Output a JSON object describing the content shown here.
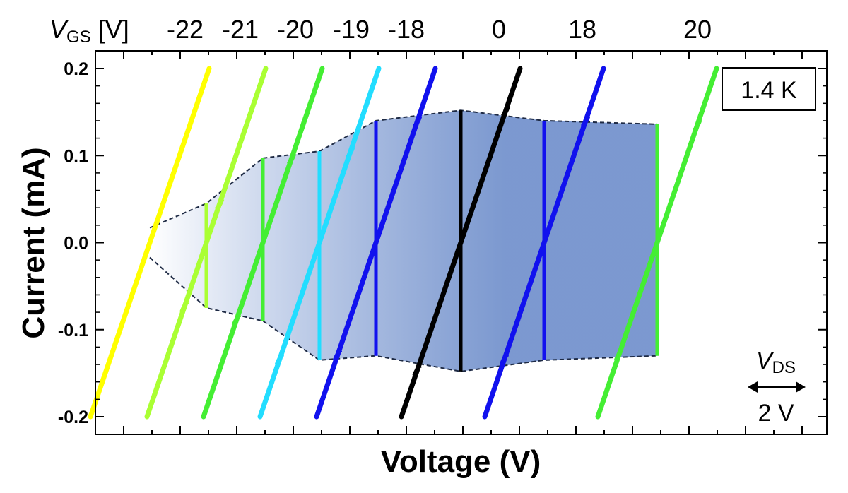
{
  "chart_data": {
    "type": "line",
    "title": "",
    "xlabel": "Voltage (V)",
    "ylabel": "Current (mA)",
    "ylim": [
      -0.2,
      0.2
    ],
    "yticks": [
      {
        "v": -0.2,
        "t": "-0.2"
      },
      {
        "v": -0.1,
        "t": "-0.1"
      },
      {
        "v": 0.0,
        "t": "0.0"
      },
      {
        "v": 0.1,
        "t": "0.1"
      },
      {
        "v": 0.2,
        "t": "0.2"
      }
    ],
    "top_axis": {
      "label_italic": "V",
      "label_sub": "GS",
      "label_unit": " [V]",
      "labels": [
        "-22",
        "-21",
        "-20",
        "-19",
        "-18",
        "0",
        "18",
        "20"
      ]
    },
    "temperature_label": "1.4 K",
    "scale_bar": {
      "label_italic": "V",
      "label_sub": "DS",
      "value": "2 V"
    },
    "series": [
      {
        "vgs": "-22",
        "color": "#ffff00",
        "offset": 0.0,
        "gap": 0.0
      },
      {
        "vgs": "-21",
        "color": "#aaff33",
        "offset": 0.0,
        "gap": 0.04
      },
      {
        "vgs": "-20",
        "color": "#44ee33",
        "offset": 0.0,
        "gap": 0.09
      },
      {
        "vgs": "-19",
        "color": "#22ddff",
        "offset": 0.0,
        "gap": 0.105
      },
      {
        "vgs": "-18",
        "color": "#1111ee",
        "offset": 0.0,
        "gap": 0.135
      },
      {
        "vgs": "0",
        "color": "#000000",
        "offset": 0.0,
        "gap": 0.152
      },
      {
        "vgs": "18",
        "color": "#1111ee",
        "offset": 0.0,
        "gap": 0.138
      },
      {
        "vgs": "20",
        "color": "#44ee33",
        "offset": 0.0,
        "gap": 0.135
      }
    ],
    "gap_envelope": {
      "fill_color": "#5b7fc4",
      "upper": [
        0.017,
        0.045,
        0.097,
        0.105,
        0.14,
        0.152,
        0.14,
        0.136
      ],
      "lower": [
        -0.017,
        -0.075,
        -0.09,
        -0.135,
        -0.13,
        -0.148,
        -0.135,
        -0.13
      ]
    },
    "grid": false,
    "legend": "none"
  }
}
